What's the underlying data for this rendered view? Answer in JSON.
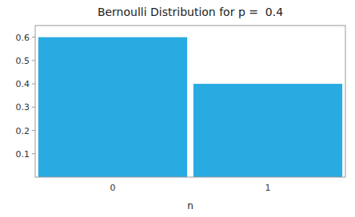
{
  "chart_data": {
    "type": "bar",
    "title": "Bernoulli Distribution for p =  0.4",
    "categories": [
      "0",
      "1"
    ],
    "values": [
      0.6,
      0.4
    ],
    "color": "#29ABE2",
    "xlabel": "n",
    "ylim": [
      0,
      0.65
    ],
    "yticks": [
      0.1,
      0.2,
      0.3,
      0.4,
      0.5,
      0.6
    ],
    "grid": false
  }
}
